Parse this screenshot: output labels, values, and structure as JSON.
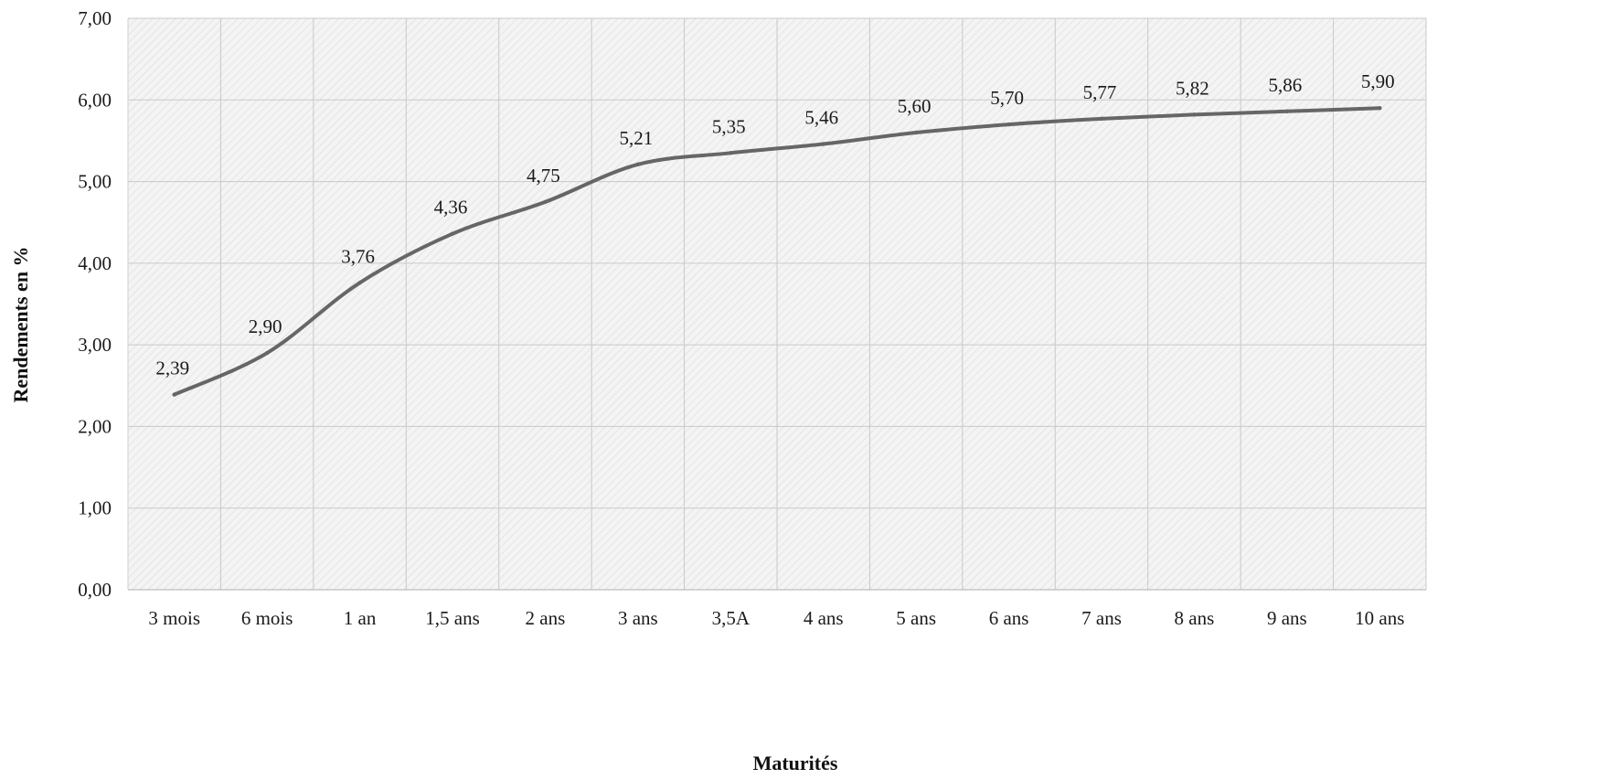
{
  "chart_data": {
    "type": "line",
    "title": "",
    "xlabel": "Maturités",
    "ylabel": "Rendements en %",
    "categories": [
      "3 mois",
      "6 mois",
      "1 an",
      "1,5 ans",
      "2 ans",
      "3 ans",
      "3,5A",
      "4 ans",
      "5 ans",
      "6 ans",
      "7 ans",
      "8 ans",
      "9 ans",
      "10 ans"
    ],
    "series": [
      {
        "values": [
          2.39,
          2.9,
          3.76,
          4.36,
          4.75,
          5.21,
          5.35,
          5.46,
          5.6,
          5.7,
          5.77,
          5.82,
          5.86,
          5.9
        ],
        "labels": [
          "2,39",
          "2,90",
          "3,76",
          "4,36",
          "4,75",
          "5,21",
          "5,35",
          "5,46",
          "5,60",
          "5,70",
          "5,77",
          "5,82",
          "5,86",
          "5,90"
        ]
      }
    ],
    "ylim": [
      0,
      7
    ],
    "yticks": [
      "0,00",
      "1,00",
      "2,00",
      "3,00",
      "4,00",
      "5,00",
      "6,00",
      "7,00"
    ],
    "grid": true,
    "legend": "none",
    "colors": {
      "line": "#666666",
      "grid": "#c9c9c9",
      "plot_bg": "#f3f3f3",
      "hatch": "#dcdcdc"
    }
  }
}
